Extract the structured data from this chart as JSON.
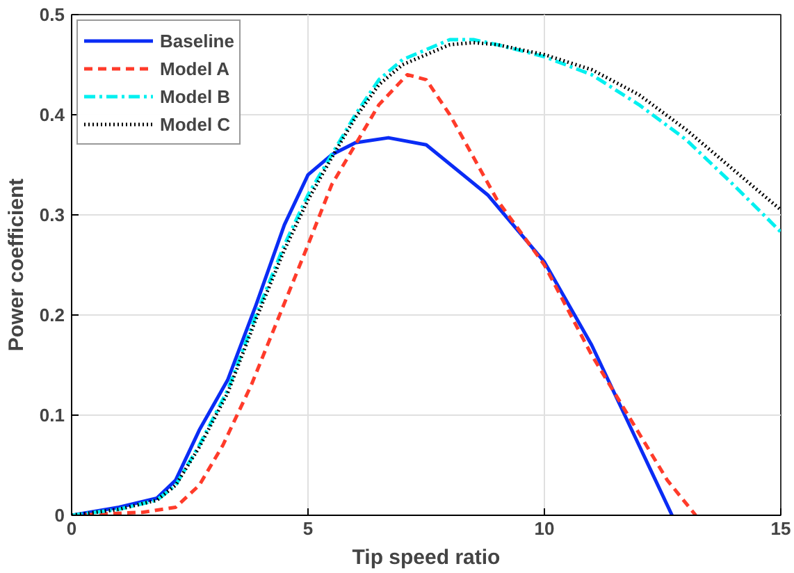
{
  "chart_data": {
    "type": "line",
    "xlabel": "Tip speed ratio",
    "ylabel": "Power coefficient",
    "xlim": [
      0,
      15
    ],
    "ylim": [
      0,
      0.5
    ],
    "xticks": [
      0,
      5,
      10,
      15
    ],
    "yticks": [
      0,
      0.1,
      0.2,
      0.3,
      0.4,
      0.5
    ],
    "grid": true,
    "legend": "top left",
    "series": [
      {
        "name": "Baseline",
        "color": "#0a2cf5",
        "line_style": "solid",
        "x": [
          0,
          1,
          1.8,
          2.2,
          2.7,
          3.3,
          3.9,
          4.5,
          5,
          5.5,
          6,
          6.7,
          7.5,
          8.8,
          10,
          11,
          11.9,
          12.3,
          12.7
        ],
        "values": [
          0,
          0.008,
          0.017,
          0.035,
          0.085,
          0.135,
          0.21,
          0.29,
          0.34,
          0.36,
          0.372,
          0.377,
          0.37,
          0.32,
          0.253,
          0.17,
          0.08,
          0.04,
          0
        ]
      },
      {
        "name": "Model A",
        "color": "#ff3b2a",
        "line_style": "dashed",
        "x": [
          0,
          1.5,
          2.2,
          2.7,
          3.2,
          3.8,
          4.4,
          5,
          5.5,
          6,
          6.5,
          7.1,
          7.5,
          8,
          9,
          10,
          11,
          12,
          12.6,
          13.2
        ],
        "values": [
          0,
          0.003,
          0.008,
          0.03,
          0.07,
          0.13,
          0.2,
          0.27,
          0.33,
          0.37,
          0.41,
          0.44,
          0.435,
          0.4,
          0.315,
          0.25,
          0.16,
          0.082,
          0.035,
          0
        ]
      },
      {
        "name": "Model B",
        "color": "#00f0f0",
        "line_style": "dashdot",
        "x": [
          0,
          1,
          1.8,
          2.2,
          2.7,
          3.3,
          3.9,
          4.5,
          5,
          5.5,
          6,
          6.5,
          7,
          7.5,
          8,
          8.5,
          9,
          10,
          11,
          12,
          13,
          14,
          15
        ],
        "values": [
          0,
          0.006,
          0.015,
          0.03,
          0.07,
          0.125,
          0.2,
          0.27,
          0.32,
          0.36,
          0.4,
          0.435,
          0.455,
          0.465,
          0.475,
          0.475,
          0.47,
          0.458,
          0.44,
          0.41,
          0.375,
          0.33,
          0.283
        ]
      },
      {
        "name": "Model C",
        "color": "#000000",
        "line_style": "dotted",
        "x": [
          0,
          1,
          1.8,
          2.2,
          2.7,
          3.3,
          3.9,
          4.5,
          5,
          5.5,
          6,
          6.5,
          7,
          7.5,
          8,
          8.5,
          9,
          10,
          11,
          12,
          13,
          14,
          15
        ],
        "values": [
          0,
          0.006,
          0.015,
          0.03,
          0.068,
          0.122,
          0.196,
          0.265,
          0.315,
          0.357,
          0.397,
          0.43,
          0.45,
          0.46,
          0.47,
          0.472,
          0.47,
          0.46,
          0.445,
          0.42,
          0.385,
          0.345,
          0.305
        ]
      }
    ]
  }
}
